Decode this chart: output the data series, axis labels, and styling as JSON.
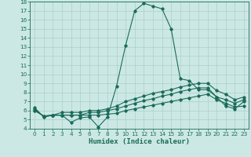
{
  "xlabel": "Humidex (Indice chaleur)",
  "bg_color": "#cce8e4",
  "grid_color": "#aacfcb",
  "line_color": "#1a6b5a",
  "xlim": [
    -0.5,
    23.5
  ],
  "ylim": [
    4,
    18
  ],
  "xticks": [
    0,
    1,
    2,
    3,
    4,
    5,
    6,
    7,
    8,
    9,
    10,
    11,
    12,
    13,
    14,
    15,
    16,
    17,
    18,
    19,
    20,
    21,
    22,
    23
  ],
  "yticks": [
    4,
    5,
    6,
    7,
    8,
    9,
    10,
    11,
    12,
    13,
    14,
    15,
    16,
    17,
    18
  ],
  "series1": [
    6.3,
    5.3,
    5.5,
    5.5,
    4.7,
    5.2,
    5.3,
    4.2,
    5.3,
    8.7,
    13.2,
    17.0,
    17.8,
    17.5,
    17.2,
    15.0,
    9.5,
    9.3,
    8.3,
    8.3,
    7.5,
    6.5,
    6.2,
    7.0
  ],
  "series2": [
    6.2,
    5.3,
    5.5,
    5.5,
    5.5,
    5.5,
    5.5,
    5.5,
    5.6,
    5.7,
    6.0,
    6.2,
    6.4,
    6.6,
    6.8,
    7.0,
    7.2,
    7.4,
    7.6,
    7.8,
    7.2,
    6.8,
    6.4,
    6.5
  ],
  "series3": [
    6.0,
    5.4,
    5.5,
    5.5,
    5.5,
    5.5,
    5.8,
    5.8,
    6.0,
    6.2,
    6.5,
    6.8,
    7.1,
    7.3,
    7.6,
    7.8,
    8.1,
    8.3,
    8.5,
    8.5,
    7.5,
    7.2,
    6.8,
    7.2
  ],
  "series4": [
    6.0,
    5.4,
    5.5,
    5.8,
    5.8,
    5.8,
    6.0,
    6.0,
    6.2,
    6.5,
    7.0,
    7.3,
    7.6,
    7.9,
    8.1,
    8.3,
    8.6,
    8.8,
    9.0,
    9.0,
    8.2,
    7.8,
    7.2,
    7.5
  ]
}
